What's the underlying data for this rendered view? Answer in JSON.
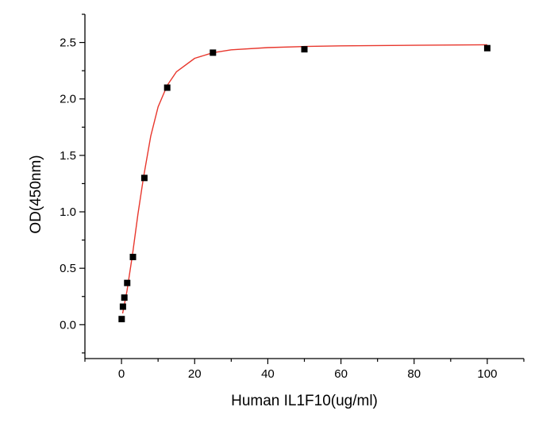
{
  "chart_data": {
    "type": "scatter",
    "title": "",
    "xlabel": "Human IL1F10(ug/ml)",
    "ylabel": "OD(450nm)",
    "xlim": [
      -10,
      110
    ],
    "ylim": [
      -0.3,
      2.75
    ],
    "xticks": [
      0,
      20,
      40,
      60,
      80,
      100
    ],
    "xtick_labels": [
      "0",
      "20",
      "40",
      "60",
      "80",
      "100"
    ],
    "yticks": [
      0.0,
      0.5,
      1.0,
      1.5,
      2.0,
      2.5
    ],
    "ytick_labels": [
      "0.0",
      "0.5",
      "1.0",
      "1.5",
      "2.0",
      "2.5"
    ],
    "grid": false,
    "legend": "none",
    "series": [
      {
        "marker": "square",
        "color": "#000000",
        "points": [
          {
            "x": 0.05,
            "y": 0.05
          },
          {
            "x": 0.39,
            "y": 0.16
          },
          {
            "x": 0.78,
            "y": 0.24
          },
          {
            "x": 1.56,
            "y": 0.37
          },
          {
            "x": 3.13,
            "y": 0.6
          },
          {
            "x": 6.25,
            "y": 1.3
          },
          {
            "x": 12.5,
            "y": 2.1
          },
          {
            "x": 25,
            "y": 2.41
          },
          {
            "x": 50,
            "y": 2.44
          },
          {
            "x": 100,
            "y": 2.45
          }
        ]
      },
      {
        "type": "line",
        "color": "#e8372d",
        "fit": "four-parameter logistic",
        "points": [
          {
            "x": 0.3,
            "y": 0.1
          },
          {
            "x": 1.5,
            "y": 0.3
          },
          {
            "x": 3,
            "y": 0.62
          },
          {
            "x": 4.5,
            "y": 0.98
          },
          {
            "x": 6,
            "y": 1.3
          },
          {
            "x": 8,
            "y": 1.67
          },
          {
            "x": 10,
            "y": 1.93
          },
          {
            "x": 12.5,
            "y": 2.12
          },
          {
            "x": 15,
            "y": 2.24
          },
          {
            "x": 20,
            "y": 2.36
          },
          {
            "x": 25,
            "y": 2.41
          },
          {
            "x": 30,
            "y": 2.435
          },
          {
            "x": 40,
            "y": 2.455
          },
          {
            "x": 50,
            "y": 2.465
          },
          {
            "x": 60,
            "y": 2.47
          },
          {
            "x": 80,
            "y": 2.475
          },
          {
            "x": 100,
            "y": 2.48
          }
        ]
      }
    ]
  }
}
